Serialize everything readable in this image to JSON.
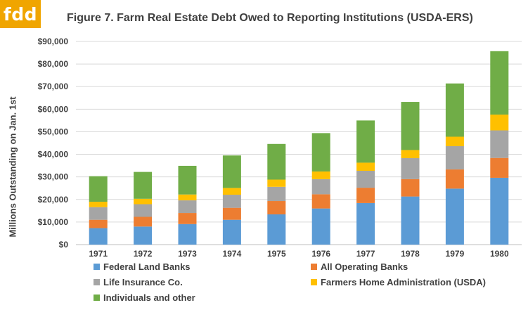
{
  "logo": {
    "text": "fdd",
    "color": "#f0a500"
  },
  "chart_data": {
    "type": "bar",
    "stacked": true,
    "title": "Figure 7. Farm Real Estate Debt Owed to Reporting Institutions (USDA-ERS)",
    "xlabel": "",
    "ylabel": "Millions Outstanding  on Jan. 1st",
    "ylim": [
      0,
      90000
    ],
    "yticks": [
      "$0",
      "$10,000",
      "$20,000",
      "$30,000",
      "$40,000",
      "$50,000",
      "$60,000",
      "$70,000",
      "$80,000",
      "$90,000"
    ],
    "grid": true,
    "legend_position": "bottom",
    "categories": [
      "1971",
      "1972",
      "1973",
      "1974",
      "1975",
      "1976",
      "1977",
      "1978",
      "1979",
      "1980"
    ],
    "series": [
      {
        "name": "Federal Land Banks",
        "color": "#5b9bd5",
        "values": [
          7300,
          8000,
          9100,
          11000,
          13400,
          16000,
          18400,
          21300,
          24800,
          29600
        ]
      },
      {
        "name": "All Operating Banks",
        "color": "#ed7d31",
        "values": [
          3700,
          4300,
          4900,
          5300,
          5900,
          6300,
          6800,
          7700,
          8500,
          8800
        ]
      },
      {
        "name": "Life Insurance Co.",
        "color": "#a5a5a5",
        "values": [
          5600,
          5600,
          5600,
          5800,
          6300,
          6700,
          7500,
          9300,
          10300,
          12200
        ]
      },
      {
        "name": "Farmers Home Administration (USDA)",
        "color": "#ffc000",
        "values": [
          2400,
          2400,
          2600,
          3000,
          3200,
          3400,
          3600,
          3600,
          4200,
          7000
        ]
      },
      {
        "name": "Individuals and other",
        "color": "#70ad47",
        "values": [
          11300,
          11900,
          12700,
          14400,
          15800,
          17000,
          18700,
          21300,
          23600,
          28100
        ]
      }
    ]
  }
}
